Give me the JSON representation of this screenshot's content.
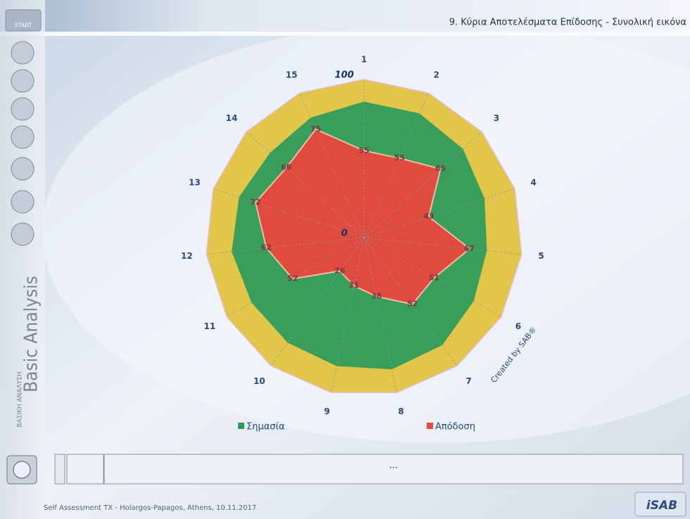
{
  "header": {
    "title": "9. Κύρια Αποτελέσματα Επίδοσης - Συνολική εικόνα"
  },
  "sidebar": {
    "start": "START",
    "vertical_title": "Basic Analysis",
    "vertical_subtitle": "ΒΑΣΙΚΗ ΑΝΑΛΥΣΗ"
  },
  "chart_data": {
    "type": "radar",
    "categories": [
      "1",
      "2",
      "3",
      "4",
      "5",
      "6",
      "7",
      "8",
      "9",
      "10",
      "11",
      "12",
      "13",
      "14",
      "15"
    ],
    "series": [
      {
        "name": "Σημασία",
        "color": "#2a9a5a",
        "values": [
          86,
          86,
          84,
          80,
          78,
          80,
          84,
          85,
          83,
          82,
          82,
          84,
          83,
          80,
          83
        ]
      },
      {
        "name": "Απόδοση",
        "color": "#f0443c",
        "values": [
          55,
          55,
          65,
          43,
          67,
          51,
          52,
          38,
          31,
          26,
          52,
          62,
          72,
          66,
          75
        ]
      }
    ],
    "rlim": [
      0,
      100
    ],
    "rticks": [
      0,
      100
    ],
    "annotation": "Created by SAB®"
  },
  "status": {
    "text": "..."
  },
  "footer": {
    "text": "Self Assessment TX - Holargos-Papagos, Athens, 10.11.2017",
    "logo": "iSAB"
  }
}
